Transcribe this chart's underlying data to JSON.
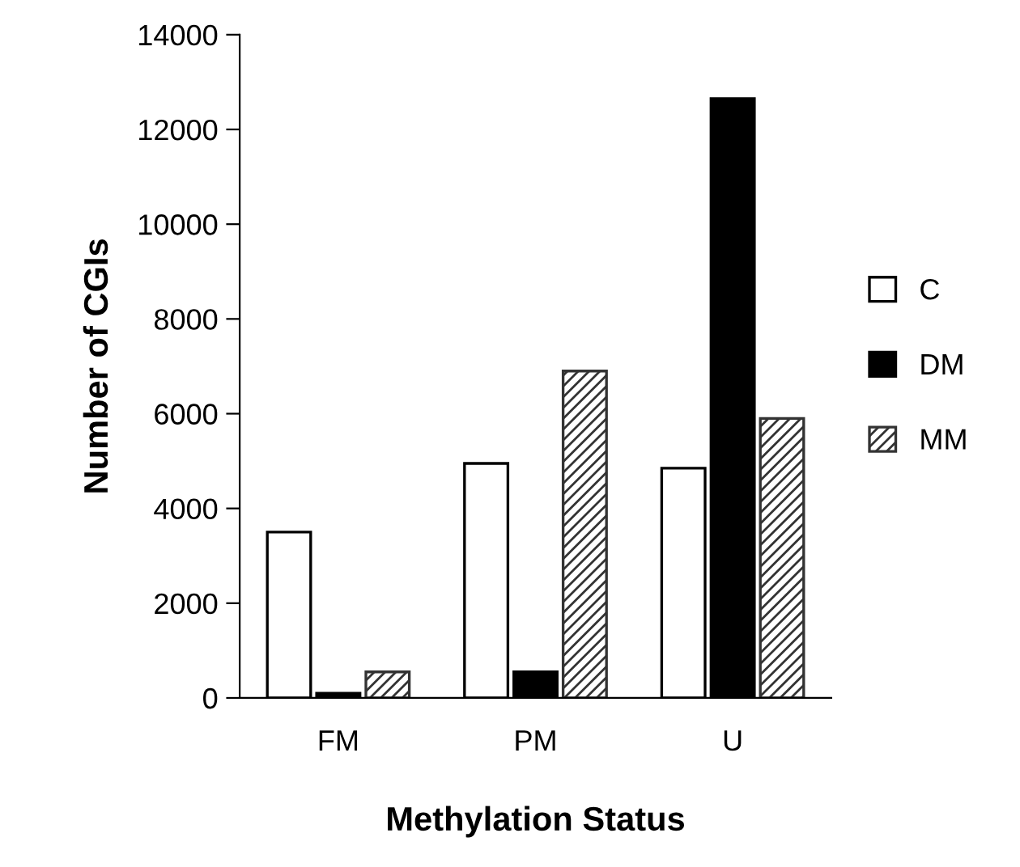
{
  "chart_data": {
    "type": "bar",
    "xlabel": "Methylation Status",
    "ylabel": "Number of CGIs",
    "categories": [
      "FM",
      "PM",
      "U"
    ],
    "series": [
      {
        "name": "C",
        "color": "#ffffff",
        "values": [
          3500,
          4950,
          4850
        ]
      },
      {
        "name": "DM",
        "color": "#000000",
        "values": [
          100,
          550,
          12650
        ]
      },
      {
        "name": "MM",
        "color": "#333333",
        "values": [
          550,
          6900,
          5900
        ]
      }
    ],
    "ylim": [
      0,
      14000
    ],
    "yticks": [
      0,
      2000,
      4000,
      6000,
      8000,
      10000,
      12000,
      14000
    ],
    "grid": false,
    "legend": "right"
  }
}
